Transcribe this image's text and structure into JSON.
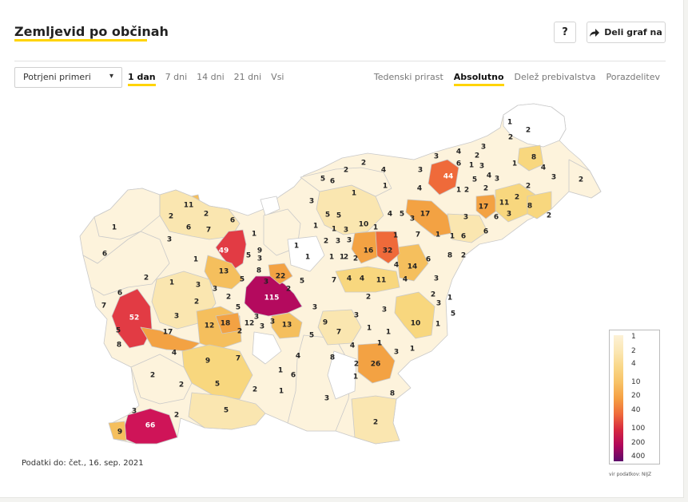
{
  "header": {
    "title": "Zemljevid po občinah",
    "help_label": "?",
    "share_label": "Deli graf na"
  },
  "controls": {
    "select_value": "Potrjeni primeri",
    "time_tabs": [
      {
        "label": "1 dan",
        "active": true
      },
      {
        "label": "7 dni",
        "active": false
      },
      {
        "label": "14 dni",
        "active": false
      },
      {
        "label": "21 dni",
        "active": false
      },
      {
        "label": "Vsi",
        "active": false
      }
    ],
    "mode_tabs": [
      {
        "label": "Tedenski prirast",
        "active": false
      },
      {
        "label": "Absolutno",
        "active": true
      },
      {
        "label": "Delež prebivalstva",
        "active": false
      },
      {
        "label": "Porazdelitev",
        "active": false
      }
    ]
  },
  "footer": {
    "date_text": "Podatki do: čet., 16. sep. 2021",
    "source_text": "vir podatkov: NIJZ"
  },
  "legend": {
    "labels": [
      "1",
      "2",
      "4",
      "10",
      "20",
      "40",
      "100",
      "200",
      "400"
    ],
    "colors": [
      "#fcf1d6",
      "#fbe7b4",
      "#f9d788",
      "#f7c266",
      "#f5a043",
      "#ef6b3b",
      "#d6283f",
      "#b0065b",
      "#5c0a6a"
    ]
  },
  "map": {
    "colors": {
      "white": "#ffffff",
      "pale": "#fdf3dc",
      "light": "#fae6b0",
      "yellow": "#f8d77e",
      "gold": "#f5bf5d",
      "orange": "#f3a243",
      "red_orange": "#ef6a3a",
      "red": "#e23b44",
      "crimson": "#cf1458",
      "magenta": "#b40a5e",
      "border": "#c9c9c9"
    },
    "values": [
      {
        "id": "ljubljana",
        "label": "115"
      },
      {
        "id": "koper",
        "label": "66"
      },
      {
        "id": "nova-gorica",
        "label": "52"
      },
      {
        "id": "kranj",
        "label": "49"
      },
      {
        "id": "maribor",
        "label": "44"
      },
      {
        "id": "celje",
        "label": "32"
      },
      {
        "id": "novo-mesto",
        "label": "26"
      },
      {
        "id": "domzale",
        "label": "22"
      },
      {
        "id": "ajdovscina",
        "label": "17"
      },
      {
        "id": "lenart",
        "label": "17"
      },
      {
        "id": "ormoz",
        "label": "17"
      },
      {
        "id": "laško",
        "label": "14"
      },
      {
        "id": "skofja-loka",
        "label": "13"
      },
      {
        "id": "grosuplje-west",
        "label": "13"
      },
      {
        "id": "vrhnika",
        "label": "12"
      },
      {
        "id": "brezovica",
        "label": "12"
      },
      {
        "id": "radlje",
        "label": "11"
      },
      {
        "id": "jesenice",
        "label": "11"
      },
      {
        "id": "sevnica",
        "label": "11"
      },
      {
        "id": "ptuj-e",
        "label": "11"
      },
      {
        "id": "trebnje",
        "label": "10"
      },
      {
        "id": "zalec",
        "label": "16"
      },
      {
        "id": "log-dragomer",
        "label": "18"
      },
      {
        "id": "zagorje",
        "label": "10"
      }
    ]
  }
}
